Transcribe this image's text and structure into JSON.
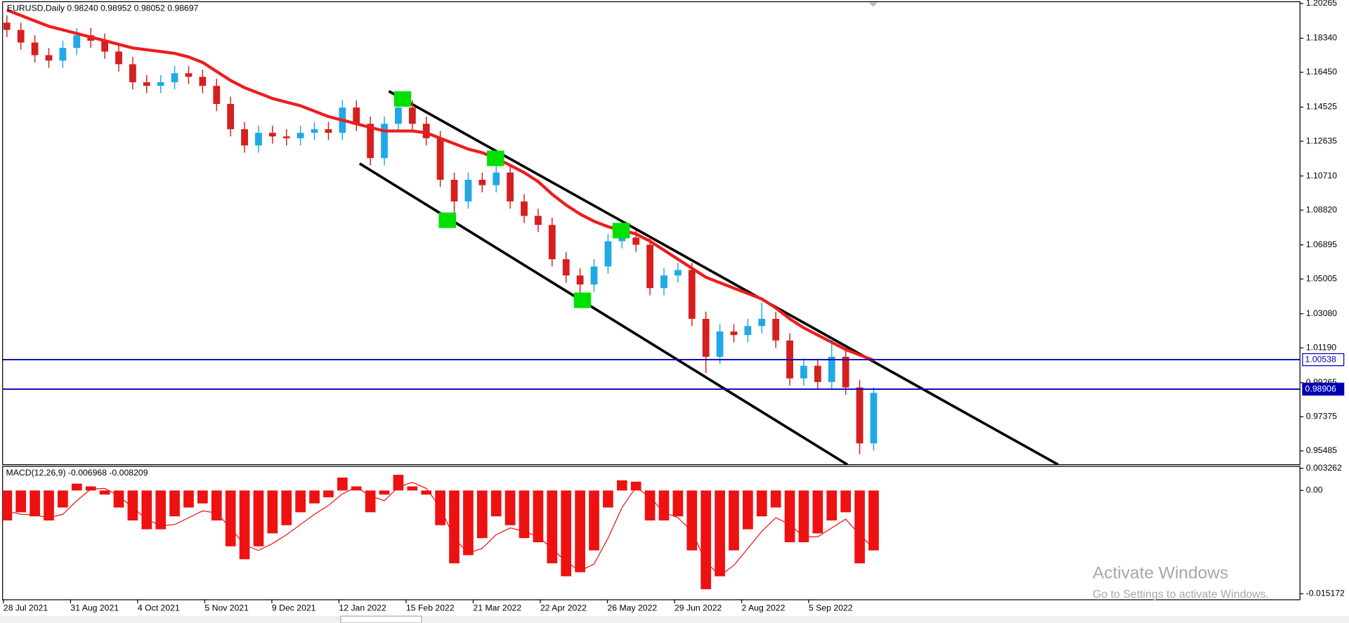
{
  "chart_data": [
    {
      "type": "candlestick",
      "title": "EURUSD,Daily  0.98240 0.98952 0.98052 0.98697",
      "open": [
        1.192,
        1.188,
        1.181,
        1.174,
        1.171,
        1.178,
        1.185,
        1.182,
        1.176,
        1.169,
        1.159,
        1.157,
        1.159,
        1.164,
        1.162,
        1.157,
        1.147,
        1.133,
        1.124,
        1.131,
        1.129,
        1.128,
        1.131,
        1.133,
        1.131,
        1.145,
        1.136,
        1.117,
        1.136,
        1.145,
        1.136,
        1.128,
        1.105,
        1.093,
        1.105,
        1.102,
        1.109,
        1.093,
        1.085,
        1.08,
        1.061,
        1.052,
        1.047,
        1.057,
        1.071,
        1.073,
        1.069,
        1.045,
        1.052,
        1.055,
        1.028,
        1.007,
        1.021,
        1.019,
        1.024,
        1.028,
        1.016,
        0.995,
        1.002,
        0.993,
        1.007,
        0.99,
        0.959
      ],
      "high": [
        1.196,
        1.192,
        1.185,
        1.178,
        1.182,
        1.189,
        1.189,
        1.186,
        1.18,
        1.173,
        1.163,
        1.163,
        1.168,
        1.168,
        1.166,
        1.161,
        1.151,
        1.137,
        1.135,
        1.135,
        1.133,
        1.135,
        1.137,
        1.137,
        1.149,
        1.149,
        1.14,
        1.14,
        1.149,
        1.149,
        1.14,
        1.132,
        1.109,
        1.109,
        1.109,
        1.117,
        1.113,
        1.097,
        1.089,
        1.084,
        1.065,
        1.056,
        1.061,
        1.075,
        1.079,
        1.077,
        1.073,
        1.056,
        1.059,
        1.059,
        1.032,
        1.025,
        1.025,
        1.028,
        1.037,
        1.032,
        1.02,
        1.006,
        1.006,
        1.017,
        1.011,
        0.994,
        0.99
      ],
      "low": [
        1.184,
        1.177,
        1.17,
        1.167,
        1.167,
        1.174,
        1.178,
        1.172,
        1.165,
        1.155,
        1.153,
        1.153,
        1.155,
        1.158,
        1.153,
        1.143,
        1.129,
        1.12,
        1.12,
        1.125,
        1.124,
        1.124,
        1.127,
        1.127,
        1.127,
        1.132,
        1.113,
        1.113,
        1.132,
        1.132,
        1.124,
        1.101,
        1.081,
        1.089,
        1.098,
        1.098,
        1.089,
        1.081,
        1.076,
        1.057,
        1.048,
        1.036,
        1.043,
        1.053,
        1.067,
        1.065,
        1.041,
        1.041,
        1.048,
        1.024,
        0.998,
        1.003,
        1.015,
        1.015,
        1.02,
        1.012,
        0.991,
        0.991,
        0.989,
        0.989,
        0.986,
        0.953,
        0.955
      ],
      "close": [
        1.188,
        1.181,
        1.174,
        1.171,
        1.178,
        1.185,
        1.182,
        1.176,
        1.169,
        1.159,
        1.157,
        1.159,
        1.164,
        1.162,
        1.157,
        1.147,
        1.133,
        1.124,
        1.131,
        1.129,
        1.128,
        1.131,
        1.133,
        1.131,
        1.145,
        1.136,
        1.117,
        1.136,
        1.145,
        1.136,
        1.128,
        1.105,
        1.093,
        1.105,
        1.102,
        1.109,
        1.093,
        1.085,
        1.08,
        1.061,
        1.052,
        1.047,
        1.057,
        1.071,
        1.073,
        1.069,
        1.045,
        1.052,
        1.055,
        1.028,
        1.007,
        1.021,
        1.019,
        1.024,
        1.028,
        1.016,
        0.995,
        1.002,
        0.993,
        1.007,
        0.99,
        0.959,
        0.987
      ],
      "up_color": "#22a8e6",
      "down_color": "#d61f1f",
      "ma": {
        "color": "#ee1c1c",
        "values": [
          1.199,
          1.196,
          1.193,
          1.19,
          1.188,
          1.186,
          1.184,
          1.182,
          1.18,
          1.178,
          1.177,
          1.176,
          1.175,
          1.173,
          1.17,
          1.165,
          1.16,
          1.156,
          1.153,
          1.15,
          1.148,
          1.146,
          1.143,
          1.14,
          1.138,
          1.136,
          1.134,
          1.132,
          1.132,
          1.132,
          1.131,
          1.128,
          1.125,
          1.122,
          1.12,
          1.117,
          1.113,
          1.109,
          1.104,
          1.097,
          1.091,
          1.086,
          1.082,
          1.079,
          1.077,
          1.075,
          1.071,
          1.066,
          1.061,
          1.056,
          1.051,
          1.048,
          1.045,
          1.042,
          1.039,
          1.034,
          1.028,
          1.023,
          1.019,
          1.015,
          1.011,
          1.008,
          1.005
        ]
      },
      "hlines": {
        "color": "#0000b4",
        "values": [
          1.00538,
          0.98906
        ]
      },
      "ylim": [
        0.94723,
        1.2036
      ],
      "yticks": [
        1.20265,
        {
          "value": 1.1834,
          "label": "1.18340"
        },
        {
          "value": 1.1645,
          "label": "1.16450"
        },
        1.14525,
        1.12635,
        {
          "value": 1.1071,
          "label": "1.10710"
        },
        {
          "value": 1.0882,
          "label": "1.08820"
        },
        1.06895,
        1.05005,
        {
          "value": 1.0308,
          "label": "1.03080"
        },
        {
          "value": 1.0119,
          "label": "1.01190"
        },
        0.99265,
        0.97375,
        0.95485
      ],
      "xticks": [
        "28 Jul 2021",
        "31 Aug 2021",
        "4 Oct 2021",
        "5 Nov 2021",
        "9 Dec 2021",
        "12 Jan 2022",
        "15 Feb 2022",
        "21 Mar 2022",
        "22 Apr 2022",
        "26 May 2022",
        "29 Jun 2022",
        "2 Aug 2022",
        "5 Sep 2022"
      ]
    },
    {
      "type": "macd",
      "title": "MACD(12,26,9) -0.006968 -0.008209",
      "color": "#ee1111",
      "values": [
        -0.0044,
        -0.0032,
        -0.0038,
        -0.0044,
        -0.0025,
        0.001,
        0.0006,
        -0.0006,
        -0.0025,
        -0.0044,
        -0.0057,
        -0.0057,
        -0.0038,
        -0.0025,
        -0.0019,
        -0.0044,
        -0.0082,
        -0.0101,
        -0.0082,
        -0.0063,
        -0.0051,
        -0.0032,
        -0.0019,
        -0.001,
        0.0019,
        0.0006,
        -0.0032,
        -0.0006,
        0.0023,
        0.0006,
        -0.0006,
        -0.0051,
        -0.0107,
        -0.0095,
        -0.007,
        -0.0038,
        -0.0051,
        -0.007,
        -0.0076,
        -0.0107,
        -0.0126,
        -0.012,
        -0.0088,
        -0.0025,
        0.0015,
        0.0013,
        -0.0044,
        -0.0044,
        -0.0038,
        -0.0088,
        -0.0145,
        -0.0126,
        -0.0088,
        -0.0057,
        -0.0038,
        -0.0025,
        -0.0076,
        -0.0076,
        -0.0063,
        -0.0044,
        -0.0032,
        -0.0107,
        -0.0088
      ],
      "signal": [
        -0.003,
        -0.0035,
        -0.0036,
        -0.004,
        -0.0035,
        -0.0015,
        0.0002,
        0.0003,
        -0.0008,
        -0.0025,
        -0.0042,
        -0.0052,
        -0.005,
        -0.004,
        -0.003,
        -0.0033,
        -0.0055,
        -0.008,
        -0.0088,
        -0.0078,
        -0.0065,
        -0.005,
        -0.0035,
        -0.0022,
        -0.0005,
        0.0005,
        -0.0008,
        -0.0015,
        0.0005,
        0.0012,
        0.0003,
        -0.0025,
        -0.007,
        -0.0092,
        -0.0085,
        -0.0065,
        -0.0055,
        -0.006,
        -0.0068,
        -0.0085,
        -0.0105,
        -0.0118,
        -0.0108,
        -0.007,
        -0.0025,
        0.0005,
        -0.001,
        -0.0032,
        -0.004,
        -0.006,
        -0.0105,
        -0.0125,
        -0.011,
        -0.0085,
        -0.006,
        -0.004,
        -0.005,
        -0.0068,
        -0.0068,
        -0.0055,
        -0.0042,
        -0.0065,
        -0.0085
      ],
      "ylim": [
        -0.01605,
        0.00354
      ],
      "yticks": [
        0.003262,
        {
          "value": 0,
          "label": "0.00"
        },
        -0.015172
      ]
    }
  ],
  "watermark": {
    "title": "Activate Windows",
    "subtitle": "Go to Settings to activate Windows."
  }
}
